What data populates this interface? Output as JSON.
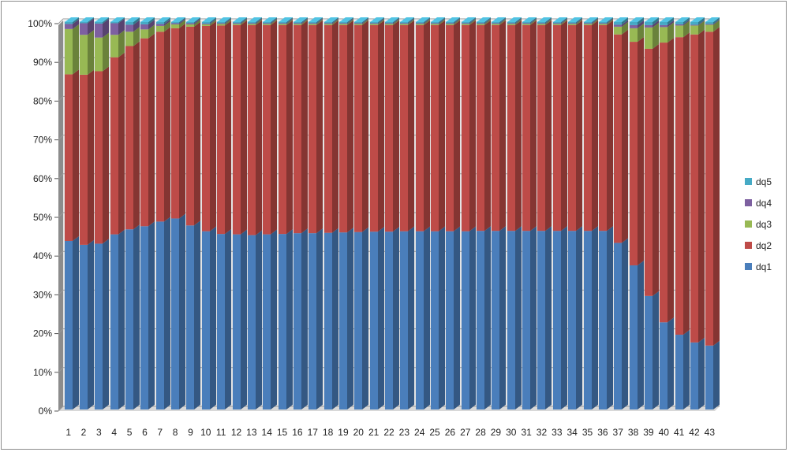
{
  "chart_data": {
    "type": "bar",
    "stacked": true,
    "percent": true,
    "three_d": true,
    "title": "",
    "xlabel": "",
    "ylabel": "",
    "ylim": [
      0,
      100
    ],
    "y_ticks": [
      "0%",
      "10%",
      "20%",
      "30%",
      "40%",
      "50%",
      "60%",
      "70%",
      "80%",
      "90%",
      "100%"
    ],
    "grid": true,
    "legend_position": "right",
    "categories": [
      "1",
      "2",
      "3",
      "4",
      "5",
      "6",
      "7",
      "8",
      "9",
      "10",
      "11",
      "12",
      "13",
      "14",
      "15",
      "16",
      "17",
      "18",
      "19",
      "20",
      "21",
      "22",
      "23",
      "24",
      "25",
      "26",
      "27",
      "28",
      "29",
      "30",
      "31",
      "32",
      "33",
      "34",
      "35",
      "36",
      "37",
      "38",
      "39",
      "40",
      "41",
      "42",
      "43"
    ],
    "series": [
      {
        "name": "dq1",
        "color": "#4a7ebb",
        "values": [
          43.5,
          42.5,
          42.8,
          45.2,
          46.5,
          47.3,
          48.5,
          49.3,
          47.5,
          46,
          45.3,
          45.2,
          45,
          45.2,
          45.3,
          45.5,
          45.5,
          45.6,
          45.7,
          45.8,
          45.9,
          45.9,
          46,
          46,
          46,
          46,
          46,
          46.1,
          46.1,
          46.1,
          46.1,
          46.1,
          46.1,
          46.1,
          46.1,
          46.1,
          43,
          37.2,
          29.3,
          22.5,
          19.3,
          17.3,
          16.5
        ]
      },
      {
        "name": "dq2",
        "color": "#be4b48",
        "values": [
          43,
          43.9,
          44.5,
          45.7,
          47.3,
          48.5,
          49,
          49.1,
          51.3,
          53,
          53.8,
          54,
          54.2,
          54,
          53.9,
          53.7,
          53.7,
          53.6,
          53.5,
          53.4,
          53.3,
          53.3,
          53.2,
          53.2,
          53.2,
          53.2,
          53.2,
          53.1,
          53.1,
          53.1,
          53.1,
          53.1,
          53.1,
          53.1,
          53.1,
          53.1,
          53.8,
          57.7,
          63.8,
          72.2,
          76.8,
          79.5,
          81
        ]
      },
      {
        "name": "dq3",
        "color": "#98b954",
        "values": [
          11.7,
          10.3,
          8.7,
          5.8,
          3.7,
          2.3,
          1.5,
          1,
          0.6,
          0.4,
          0.4,
          0.3,
          0.3,
          0.3,
          0.3,
          0.3,
          0.3,
          0.3,
          0.3,
          0.3,
          0.3,
          0.3,
          0.3,
          0.3,
          0.3,
          0.3,
          0.3,
          0.3,
          0.3,
          0.3,
          0.3,
          0.3,
          0.3,
          0.3,
          0.3,
          0.3,
          2,
          3.5,
          5.5,
          4,
          3,
          2.3,
          1.8
        ]
      },
      {
        "name": "dq4",
        "color": "#7d60a0",
        "values": [
          1.3,
          3,
          3.6,
          3,
          1.8,
          1.3,
          0.5,
          0.3,
          0.3,
          0.2,
          0.2,
          0.2,
          0.2,
          0.2,
          0.2,
          0.2,
          0.2,
          0.2,
          0.2,
          0.2,
          0.2,
          0.2,
          0.2,
          0.2,
          0.2,
          0.2,
          0.2,
          0.2,
          0.2,
          0.2,
          0.2,
          0.2,
          0.2,
          0.2,
          0.2,
          0.2,
          0.5,
          0.8,
          0.6,
          0.5,
          0.3,
          0.2,
          0.2
        ]
      },
      {
        "name": "dq5",
        "color": "#46aac5",
        "values": [
          0.5,
          0.3,
          0.4,
          0.3,
          0.7,
          0.6,
          0.5,
          0.3,
          0.3,
          0.4,
          0.3,
          0.3,
          0.3,
          0.3,
          0.3,
          0.3,
          0.3,
          0.3,
          0.3,
          0.3,
          0.3,
          0.3,
          0.3,
          0.3,
          0.3,
          0.3,
          0.3,
          0.3,
          0.3,
          0.3,
          0.3,
          0.3,
          0.3,
          0.3,
          0.3,
          0.3,
          0.7,
          0.8,
          0.8,
          0.8,
          0.6,
          0.7,
          0.5
        ]
      }
    ]
  }
}
